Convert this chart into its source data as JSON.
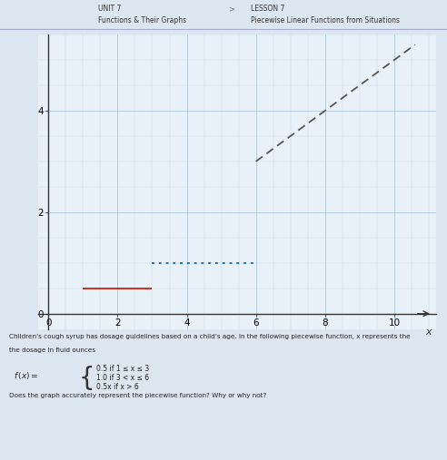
{
  "title_line1": "UNIT 7",
  "title_line2": "Functions & Their Graphs",
  "lesson_line1": "LESSON 7",
  "lesson_line2": "Piecewise Linear Functions from Situations",
  "xlim": [
    -0.3,
    11.2
  ],
  "ylim": [
    -0.3,
    5.5
  ],
  "xticks": [
    0,
    2,
    4,
    6,
    8,
    10
  ],
  "yticks": [
    0,
    2,
    4
  ],
  "xlabel": "x",
  "segment1": {
    "x": [
      1,
      3
    ],
    "y": [
      0.5,
      0.5
    ],
    "color": "#c0392b",
    "linestyle": "-",
    "linewidth": 1.5
  },
  "segment2": {
    "x": [
      3,
      6
    ],
    "y": [
      1.0,
      1.0
    ],
    "color": "#2472b5",
    "linestyle": "dotted",
    "linewidth": 1.4
  },
  "segment3": {
    "x": [
      6,
      10.6
    ],
    "y": [
      3.0,
      5.3
    ],
    "color": "#555555",
    "linestyle": "--",
    "linewidth": 1.3
  },
  "grid_minor_color": "#c5d5e5",
  "grid_major_color": "#b0c8dc",
  "bg_color": "#dce6f0",
  "plot_bg_color": "#e8f0f8",
  "header_bg": "#dce6f0",
  "text_body1": "Children's cough syrup has dosage guidelines based on a child's age. In the following piecewise function, x represents the",
  "text_body2": "the dosage in fluid ounces",
  "formula_line1": "0.5 if 1 ≤ x ≤ 3",
  "formula_line2": "1.0 if 3 < x ≤ 6",
  "formula_line3": "0.5x if x > 6",
  "question": "Does the graph accurately represent the piecewise function? Why or why not?"
}
